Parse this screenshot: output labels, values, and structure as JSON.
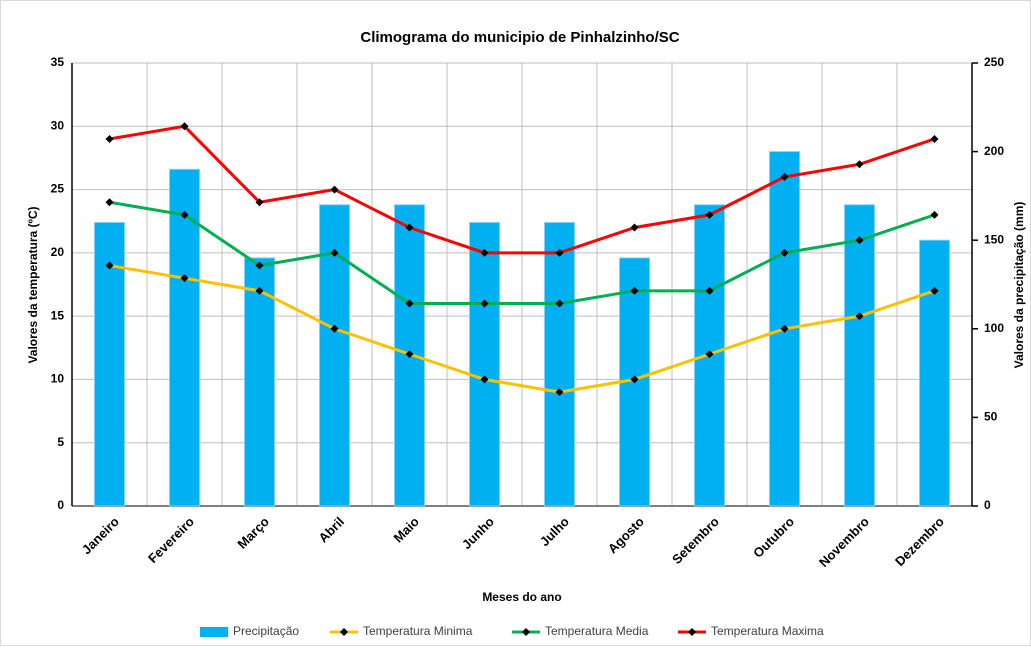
{
  "chart_data": {
    "type": "bar",
    "title": "Climograma do municipio de Pinhalzinho/SC",
    "xlabel": "Meses do ano",
    "ylabel": "Valores da temperatura (ºC)",
    "y2label": "Valores da precipitação (mm)",
    "categories": [
      "Janeiro",
      "Fevereiro",
      "Março",
      "Abril",
      "Maio",
      "Junho",
      "Julho",
      "Agosto",
      "Setembro",
      "Outubro",
      "Novembro",
      "Dezembro"
    ],
    "ylim": [
      0,
      35
    ],
    "yticks": [
      0,
      5,
      10,
      15,
      20,
      25,
      30,
      35
    ],
    "y2lim": [
      0,
      250
    ],
    "y2ticks": [
      0,
      50,
      100,
      150,
      200,
      250
    ],
    "grid": true,
    "legend": "bottom",
    "series": [
      {
        "name": "Precipitação",
        "type": "bar",
        "axis": "y2",
        "color": "#00b0f0",
        "values": [
          160,
          190,
          140,
          170,
          170,
          160,
          160,
          140,
          170,
          200,
          170,
          150
        ]
      },
      {
        "name": "Temperatura Minima",
        "type": "line",
        "color": "#ffc000",
        "values": [
          19,
          18,
          17,
          14,
          12,
          10,
          9,
          10,
          12,
          14,
          15,
          17
        ]
      },
      {
        "name": "Temperatura Media",
        "type": "line",
        "color": "#00b050",
        "values": [
          24,
          23,
          19,
          20,
          16,
          16,
          16,
          17,
          17,
          20,
          21,
          23
        ]
      },
      {
        "name": "Temperatura Maxima",
        "type": "line",
        "color": "#ff0000",
        "values": [
          29,
          30,
          24,
          25,
          22,
          20,
          20,
          22,
          23,
          26,
          27,
          29
        ]
      }
    ]
  }
}
